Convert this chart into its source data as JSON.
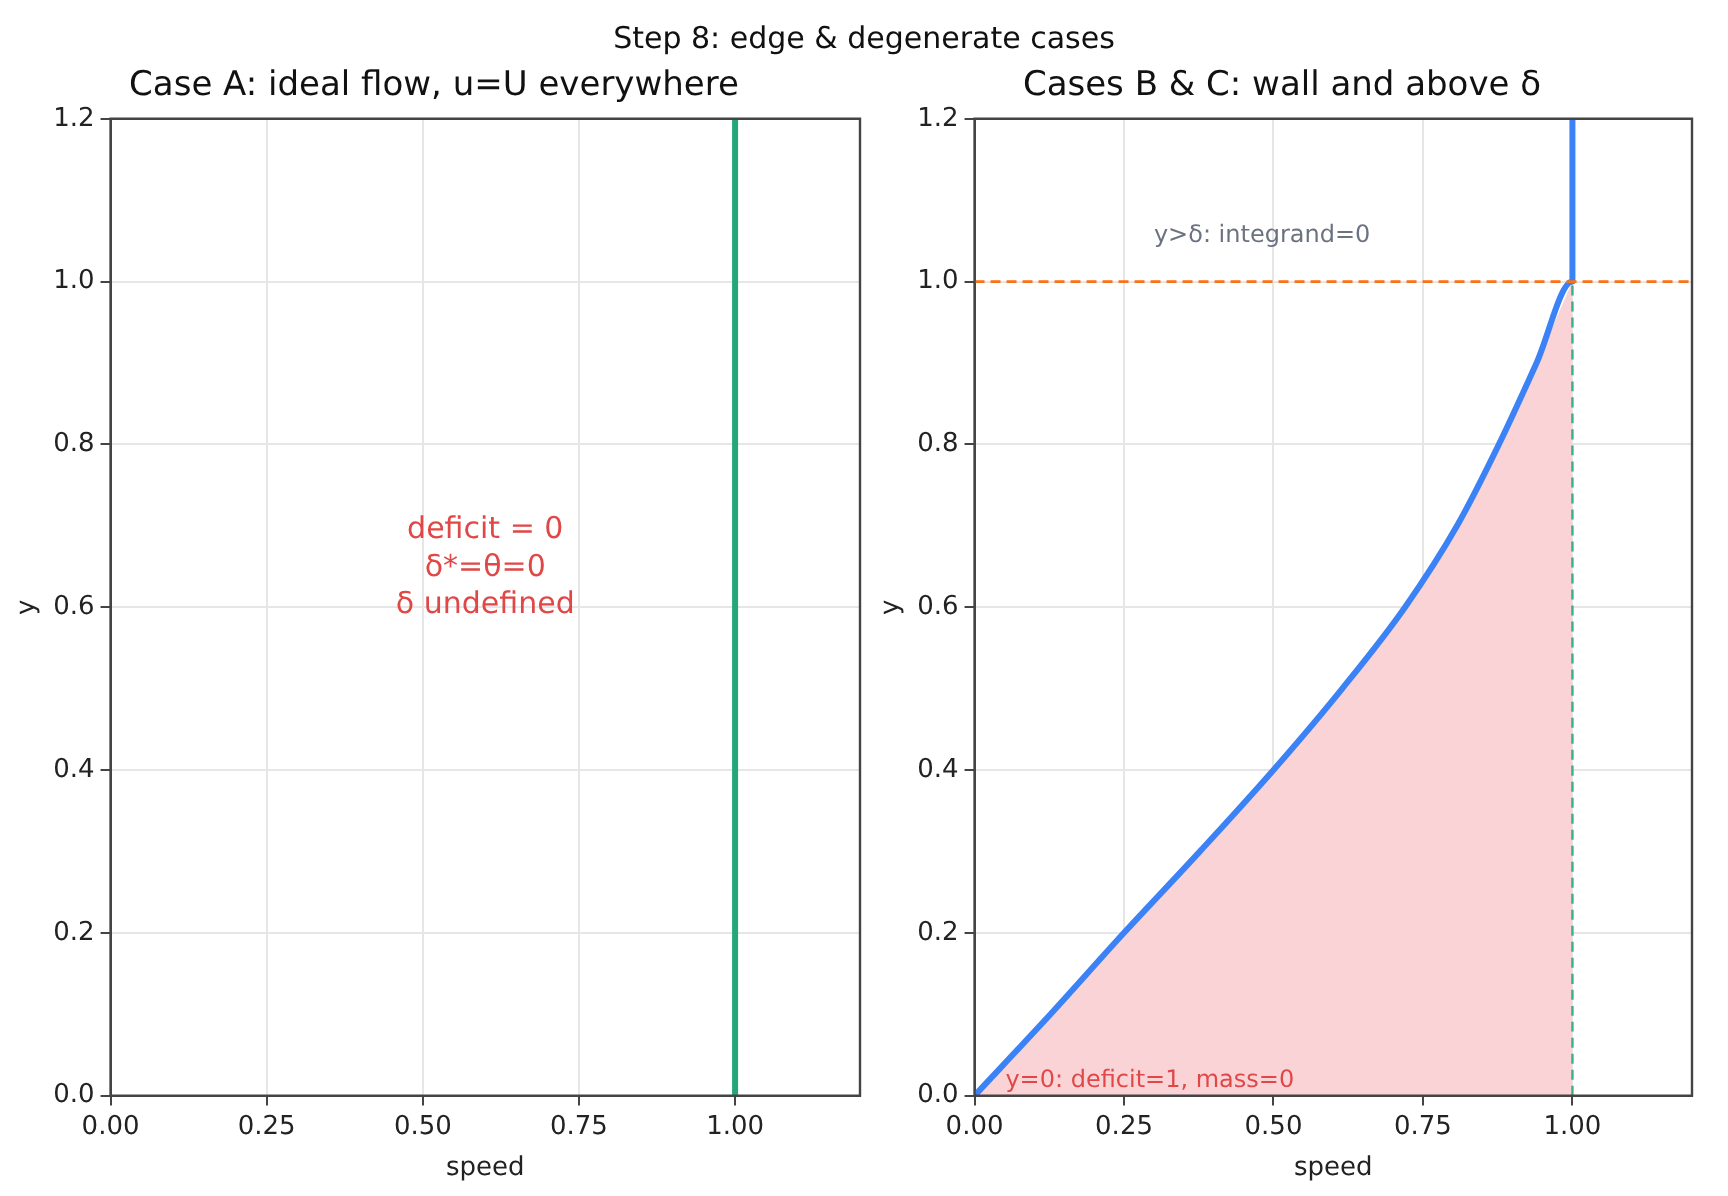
{
  "chart_data": [
    {
      "type": "line",
      "title": "Case A: ideal flow, u=U everywhere",
      "subtitle": "Step 8: edge & degenerate cases",
      "xlabel": "speed",
      "ylabel": "y",
      "series": [
        {
          "type": "line",
          "color": "#22a67a",
          "x": [
            1,
            1
          ],
          "values": [
            0,
            1.2
          ]
        }
      ],
      "xlim": [
        0,
        1.2
      ],
      "xticks": [
        {
          "value": 0,
          "label": "0.00"
        },
        {
          "value": 0.25,
          "label": "0.25"
        },
        {
          "value": 0.5,
          "label": "0.50"
        },
        {
          "value": 0.75,
          "label": "0.75"
        },
        {
          "value": 1,
          "label": "1.00"
        }
      ],
      "ylim": [
        0,
        1.2
      ],
      "yticks": [
        {
          "value": 0,
          "label": "0.0"
        },
        {
          "value": 0.2,
          "label": "0.2"
        },
        {
          "value": 0.4,
          "label": "0.4"
        },
        {
          "value": 0.6,
          "label": "0.6"
        },
        {
          "value": 0.8,
          "label": "0.8"
        },
        {
          "value": 1,
          "label": "1.0"
        },
        {
          "value": 1.2,
          "label": "1.2"
        }
      ],
      "annotations": [
        "deficit = 0\nδ*=θ=0\nδ undefined"
      ],
      "grid": true,
      "legend": false
    },
    {
      "type": "line",
      "title": "Cases B & C: wall and above δ",
      "xlabel": "speed",
      "ylabel": "y",
      "series": [
        {
          "type": "area",
          "color": "#f9d3d6",
          "x": [
            0,
            0.127,
            0.25,
            0.377,
            0.5,
            0.615,
            0.72,
            0.807,
            0.877,
            0.94,
            1
          ],
          "values": [
            0,
            0.1,
            0.2,
            0.3,
            0.4,
            0.5,
            0.6,
            0.7,
            0.8,
            0.9,
            1
          ]
        },
        {
          "type": "line",
          "color": "#3b82f6",
          "x": [
            0,
            0.127,
            0.25,
            0.377,
            0.5,
            0.615,
            0.72,
            0.807,
            0.877,
            0.94,
            1,
            1
          ],
          "values": [
            0,
            0.1,
            0.2,
            0.3,
            0.4,
            0.5,
            0.6,
            0.7,
            0.8,
            0.9,
            1,
            1.2
          ]
        },
        {
          "type": "line",
          "color": "#3fae82",
          "line_style": "dashed",
          "x": [
            1,
            1
          ],
          "values": [
            0,
            1
          ]
        }
      ],
      "ref_lines": [
        {
          "axis": "y",
          "value": 1,
          "color": "#f97316",
          "line_style": "dashed"
        }
      ],
      "xlim": [
        0,
        1.2
      ],
      "xticks": [
        {
          "value": 0,
          "label": "0.00"
        },
        {
          "value": 0.25,
          "label": "0.25"
        },
        {
          "value": 0.5,
          "label": "0.50"
        },
        {
          "value": 0.75,
          "label": "0.75"
        },
        {
          "value": 1,
          "label": "1.00"
        }
      ],
      "ylim": [
        0,
        1.2
      ],
      "yticks": [
        {
          "value": 0,
          "label": "0.0"
        },
        {
          "value": 0.2,
          "label": "0.2"
        },
        {
          "value": 0.4,
          "label": "0.4"
        },
        {
          "value": 0.6,
          "label": "0.6"
        },
        {
          "value": 0.8,
          "label": "0.8"
        },
        {
          "value": 1,
          "label": "1.0"
        },
        {
          "value": 1.2,
          "label": "1.2"
        }
      ],
      "annotations": [
        "y>δ: integrand=0",
        "y=0: deficit=1, mass=0"
      ],
      "grid": true,
      "legend": false
    }
  ]
}
